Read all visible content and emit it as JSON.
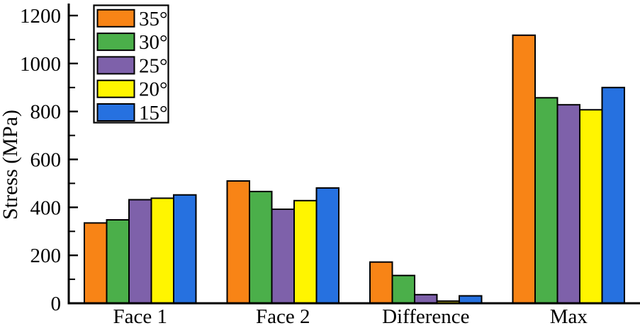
{
  "chart_data": {
    "type": "bar",
    "title": "",
    "ylabel": "Stress (MPa)",
    "xlabel": "",
    "categories": [
      "Face 1",
      "Face 2",
      "Difference",
      "Max"
    ],
    "series": [
      {
        "name": "35°",
        "color": "#F88416",
        "values": [
          335,
          510,
          172,
          1118
        ]
      },
      {
        "name": "30°",
        "color": "#4BAF4A",
        "values": [
          348,
          466,
          116,
          857
        ]
      },
      {
        "name": "25°",
        "color": "#7E61AA",
        "values": [
          432,
          392,
          36,
          828
        ]
      },
      {
        "name": "20°",
        "color": "#FFF500",
        "values": [
          438,
          428,
          9,
          807
        ]
      },
      {
        "name": "15°",
        "color": "#2671E0",
        "values": [
          452,
          481,
          31,
          900
        ]
      }
    ],
    "ylim": [
      0,
      1250
    ],
    "yticks": [
      0,
      200,
      400,
      600,
      800,
      1000,
      1200
    ],
    "minor_yticks": [
      100,
      300,
      500,
      700,
      900,
      1100
    ],
    "legend_position": "top-left",
    "grid": false,
    "bar_outline_color": "#000000",
    "axis_color": "#000000",
    "background_color": "#FFFFFF"
  }
}
